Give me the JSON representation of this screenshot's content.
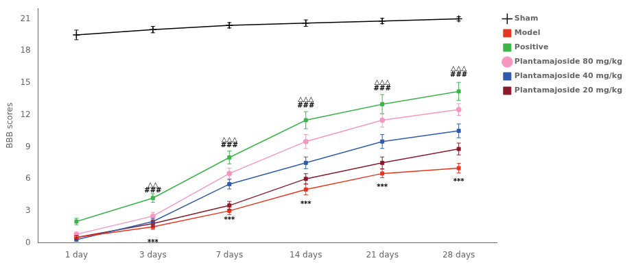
{
  "chart_data": {
    "type": "line",
    "categories": [
      "1 day",
      "3 days",
      "7 days",
      "14 days",
      "21 days",
      "28 days"
    ],
    "series": [
      {
        "name": "Sham",
        "color": "#000000",
        "marker": "plus",
        "values": [
          19.5,
          20.0,
          20.4,
          20.6,
          20.8,
          21.0
        ],
        "errors": [
          0.45,
          0.3,
          0.25,
          0.3,
          0.25,
          0.2
        ]
      },
      {
        "name": "Model",
        "color": "#e8341c",
        "marker": "square",
        "values": [
          0.5,
          1.5,
          3.0,
          5.0,
          6.5,
          7.0
        ],
        "errors": [
          0.15,
          0.25,
          0.35,
          0.5,
          0.4,
          0.45
        ]
      },
      {
        "name": "Positive",
        "color": "#3ab54a",
        "marker": "square",
        "values": [
          2.0,
          4.2,
          8.0,
          11.5,
          13.0,
          14.2
        ],
        "errors": [
          0.3,
          0.4,
          0.6,
          0.8,
          0.9,
          0.85
        ]
      },
      {
        "name": "Plantamajoside 80 mg/kg",
        "color": "#f797c0",
        "marker": "circle",
        "values": [
          0.8,
          2.5,
          6.5,
          9.5,
          11.5,
          12.5
        ],
        "errors": [
          0.2,
          0.35,
          0.5,
          0.65,
          0.65,
          0.55
        ]
      },
      {
        "name": "Plantamajoside 40 mg/kg",
        "color": "#2e5caa",
        "marker": "square",
        "values": [
          0.3,
          2.0,
          5.5,
          7.5,
          9.5,
          10.5
        ],
        "errors": [
          0.15,
          0.28,
          0.45,
          0.55,
          0.65,
          0.65
        ]
      },
      {
        "name": "Plantamajoside 20 mg/kg",
        "color": "#8b1a2d",
        "marker": "square",
        "values": [
          0.5,
          1.8,
          3.5,
          6.0,
          7.5,
          8.8
        ],
        "errors": [
          0.18,
          0.28,
          0.38,
          0.48,
          0.55,
          0.55
        ]
      }
    ],
    "annotations": [
      {
        "x": "3 days",
        "y": 5.1,
        "text": "△△"
      },
      {
        "x": "3 days",
        "y": 4.55,
        "text": "###"
      },
      {
        "x": "3 days",
        "y": -0.3,
        "text": "***"
      },
      {
        "x": "7 days",
        "y": 9.35,
        "text": "△△△"
      },
      {
        "x": "7 days",
        "y": 8.8,
        "text": "###"
      },
      {
        "x": "7 days",
        "y": 1.8,
        "text": "***"
      },
      {
        "x": "14 days",
        "y": 13.1,
        "text": "△△△"
      },
      {
        "x": "14 days",
        "y": 12.55,
        "text": "###"
      },
      {
        "x": "14 days",
        "y": 3.3,
        "text": "***"
      },
      {
        "x": "21 days",
        "y": 14.7,
        "text": "△△△"
      },
      {
        "x": "21 days",
        "y": 14.15,
        "text": "###"
      },
      {
        "x": "21 days",
        "y": 4.9,
        "text": "***"
      },
      {
        "x": "28 days",
        "y": 16.0,
        "text": "△△△"
      },
      {
        "x": "28 days",
        "y": 15.45,
        "text": "###"
      },
      {
        "x": "28 days",
        "y": 5.4,
        "text": "***"
      }
    ],
    "ylabel": "BBB scores",
    "ylim": [
      0,
      22
    ],
    "yticks": [
      0,
      3,
      6,
      9,
      12,
      15,
      18,
      21
    ],
    "grid": false,
    "legend": "upper right"
  }
}
